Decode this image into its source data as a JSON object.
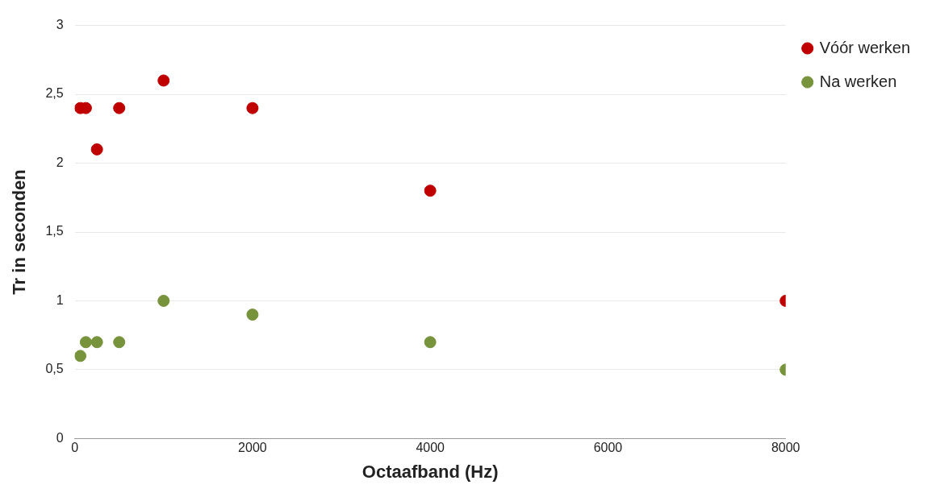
{
  "chart_data": {
    "type": "scatter",
    "xlabel": "Octaafband (Hz)",
    "ylabel": "Tr in seconden",
    "x": [
      63,
      125,
      250,
      500,
      1000,
      2000,
      4000,
      8000
    ],
    "series": [
      {
        "name": "Vóór werken",
        "color": "#c00000",
        "values": [
          2.4,
          2.4,
          2.1,
          2.4,
          2.6,
          2.4,
          1.8,
          1.0
        ]
      },
      {
        "name": "Na werken",
        "color": "#77933c",
        "values": [
          0.6,
          0.7,
          0.7,
          0.7,
          1.0,
          0.9,
          0.7,
          0.5
        ]
      }
    ],
    "xlim": [
      0,
      8000
    ],
    "xticks": [
      0,
      2000,
      4000,
      6000,
      8000
    ],
    "ylim": [
      0,
      3
    ],
    "yticks": [
      {
        "value": 0,
        "label": "0"
      },
      {
        "value": 0.5,
        "label": "0,5"
      },
      {
        "value": 1,
        "label": "1"
      },
      {
        "value": 1.5,
        "label": "1,5"
      },
      {
        "value": 2,
        "label": "2"
      },
      {
        "value": 2.5,
        "label": "2,5"
      },
      {
        "value": 3,
        "label": "3"
      }
    ],
    "grid": "y",
    "legend": "top right",
    "marker": "circle"
  }
}
